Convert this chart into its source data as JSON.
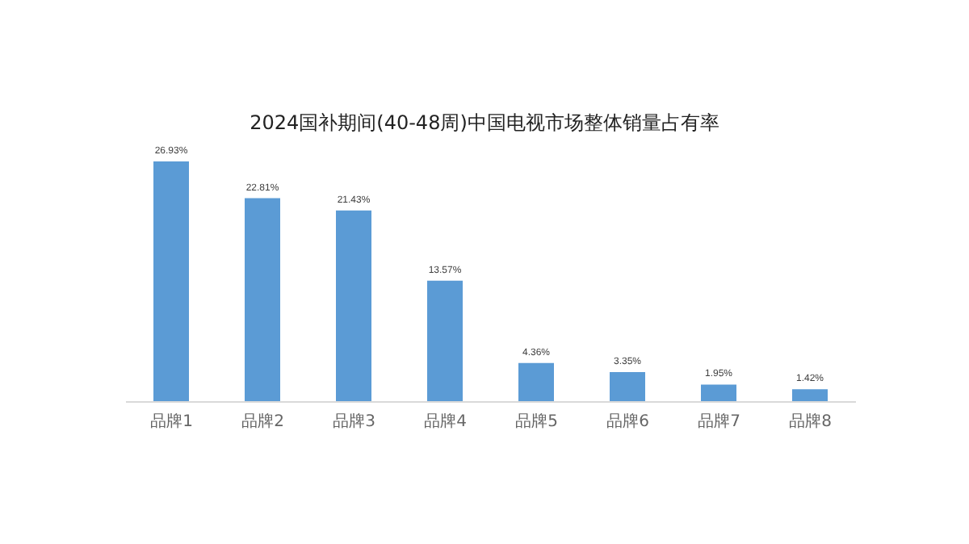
{
  "chart_data": {
    "type": "bar",
    "title": "2024国补期间(40-48周)中国电视市场整体销量占有率",
    "categories": [
      "品牌1",
      "品牌2",
      "品牌3",
      "品牌4",
      "品牌5",
      "品牌6",
      "品牌7",
      "品牌8"
    ],
    "values": [
      26.93,
      22.81,
      21.43,
      13.57,
      4.36,
      3.35,
      1.95,
      1.42
    ],
    "value_labels": [
      "26.93%",
      "22.81%",
      "21.43%",
      "13.57%",
      "4.36%",
      "3.35%",
      "1.95%",
      "1.42%"
    ],
    "color": "#5b9bd5",
    "tick_labels": "x"
  }
}
